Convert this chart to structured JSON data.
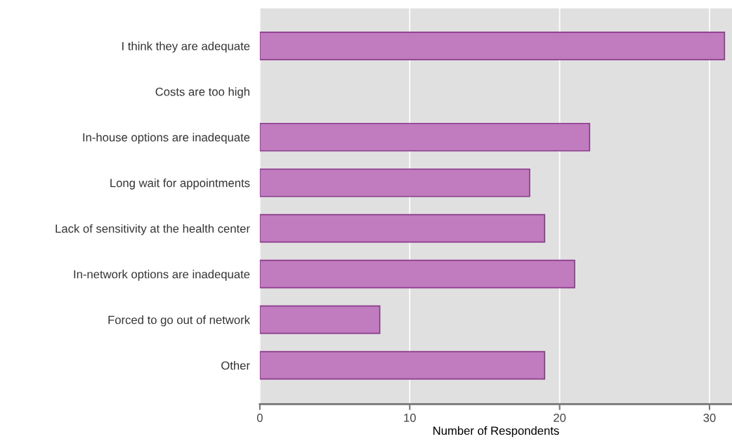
{
  "chart_data": {
    "type": "bar",
    "orientation": "horizontal",
    "xlabel": "Number of Respondents",
    "categories": [
      "I think they are adequate",
      "Costs are too high",
      "In-house options are inadequate",
      "Long wait for appointments",
      "Lack of sensitivity at the health center",
      "In-network options are inadequate",
      "Forced to go out of network",
      "Other"
    ],
    "values": [
      31,
      0,
      22,
      18,
      19,
      21,
      8,
      19
    ],
    "color": "#c07cbf",
    "xlim": [
      0,
      31.5
    ],
    "xticks": [
      0,
      10,
      20,
      30
    ],
    "grid": "x",
    "legend": false
  }
}
